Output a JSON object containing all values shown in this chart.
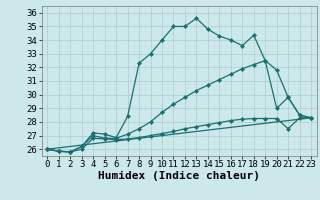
{
  "xlabel": "Humidex (Indice chaleur)",
  "xlim": [
    -0.5,
    23.5
  ],
  "ylim": [
    25.5,
    36.5
  ],
  "yticks": [
    26,
    27,
    28,
    29,
    30,
    31,
    32,
    33,
    34,
    35,
    36
  ],
  "xticks": [
    0,
    1,
    2,
    3,
    4,
    5,
    6,
    7,
    8,
    9,
    10,
    11,
    12,
    13,
    14,
    15,
    16,
    17,
    18,
    19,
    20,
    21,
    22,
    23
  ],
  "bg_color": "#cce8ea",
  "line_color": "#1a7070",
  "grid_color": "#aacdd0",
  "series": [
    {
      "x": [
        0,
        1,
        2,
        3,
        4,
        5,
        6,
        7,
        8,
        9,
        10,
        11,
        12,
        13,
        14,
        15,
        16,
        17,
        18,
        19,
        20,
        21,
        22,
        23
      ],
      "y": [
        26.0,
        25.85,
        25.8,
        26.2,
        27.2,
        27.1,
        26.85,
        28.4,
        32.3,
        33.0,
        34.0,
        35.0,
        35.0,
        35.6,
        34.8,
        34.3,
        34.0,
        33.6,
        34.35,
        32.5,
        29.0,
        29.8,
        28.5,
        28.3
      ]
    },
    {
      "x": [
        0,
        1,
        2,
        3,
        4,
        5,
        6,
        7,
        8,
        9,
        10,
        11,
        12,
        13,
        14,
        15,
        16,
        17,
        18,
        19,
        20,
        21,
        22,
        23
      ],
      "y": [
        26.0,
        25.85,
        25.8,
        26.2,
        27.0,
        26.8,
        26.8,
        27.1,
        27.5,
        28.0,
        28.7,
        29.3,
        29.8,
        30.3,
        30.7,
        31.1,
        31.5,
        31.9,
        32.2,
        32.5,
        31.8,
        29.8,
        28.5,
        28.3
      ]
    },
    {
      "x": [
        0,
        1,
        2,
        3,
        4,
        5,
        6,
        7,
        8,
        9,
        10,
        11,
        12,
        13,
        14,
        15,
        16,
        17,
        18,
        19,
        20,
        21,
        22,
        23
      ],
      "y": [
        26.0,
        25.85,
        25.8,
        26.0,
        26.8,
        26.75,
        26.7,
        26.75,
        26.85,
        27.0,
        27.15,
        27.3,
        27.5,
        27.65,
        27.8,
        27.95,
        28.1,
        28.2,
        28.25,
        28.25,
        28.25,
        27.5,
        28.3,
        28.3
      ]
    },
    {
      "x": [
        0,
        23
      ],
      "y": [
        26.0,
        28.3
      ]
    }
  ],
  "font_family": "monospace",
  "xlabel_fontsize": 8,
  "tick_fontsize": 6.5
}
